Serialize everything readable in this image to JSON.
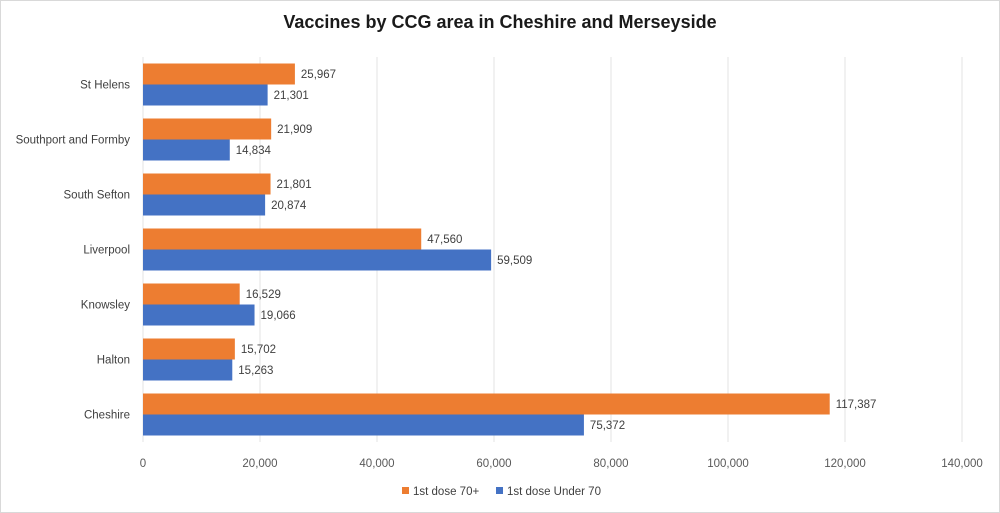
{
  "chart_data": {
    "type": "bar",
    "orientation": "horizontal",
    "title": "Vaccines by CCG area in Cheshire and Merseyside",
    "xlabel": "",
    "ylabel": "",
    "categories": [
      "St Helens",
      "Southport and Formby",
      "South Sefton",
      "Liverpool",
      "Knowsley",
      "Halton",
      "Cheshire"
    ],
    "series": [
      {
        "name": "1st dose 70+",
        "color": "#ed7d31",
        "values": [
          25967,
          21909,
          21801,
          47560,
          16529,
          15702,
          117387
        ],
        "labels": [
          "25,967",
          "21,909",
          "21,801",
          "47,560",
          "16,529",
          "15,702",
          "117,387"
        ]
      },
      {
        "name": "1st dose Under 70",
        "color": "#4472c4",
        "values": [
          21301,
          14834,
          20874,
          59509,
          19066,
          15263,
          75372
        ],
        "labels": [
          "21,301",
          "14,834",
          "20,874",
          "59,509",
          "19,066",
          "15,263",
          "75,372"
        ]
      }
    ],
    "xlim": [
      0,
      140000
    ],
    "xticks": [
      0,
      20000,
      40000,
      60000,
      80000,
      100000,
      120000,
      140000
    ],
    "xtick_labels": [
      "0",
      "20,000",
      "40,000",
      "60,000",
      "80,000",
      "100,000",
      "120,000",
      "140,000"
    ],
    "grid": true,
    "legend_position": "bottom"
  }
}
